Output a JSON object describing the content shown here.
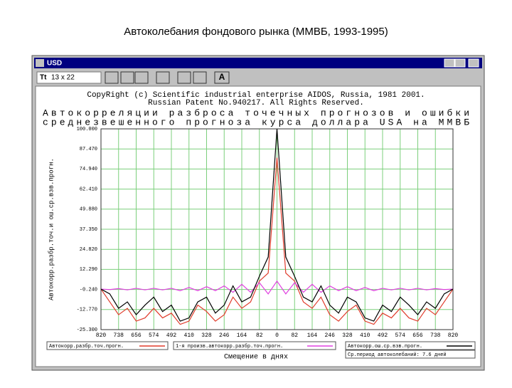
{
  "slide_title": "Автоколебания фондового рынка (ММВБ, 1993-1995)",
  "window": {
    "title": "USD",
    "toolbar": {
      "font_icon": "Tt",
      "size": "13 x 22",
      "font_button": "A"
    }
  },
  "chart_data": {
    "type": "line",
    "header": [
      "CopyRight (c) Scientific industrial enterprise AIDOS, Russia, 1981 2001.",
      "Russian Patent No.940217. All Rights Reserved."
    ],
    "title": [
      "Автокорреляции разброса точечных прогнозов и ошибки",
      "среднезвешенного прогноза курса доллара USA на ММВБ"
    ],
    "x_label": "Смещение в днях",
    "y_label": "Автокорр.разбр.точ.и ош.ср.взв.прогн.",
    "annotation": "Ср.период автоколебаний: 7.6 дней",
    "x": [
      -820,
      -779,
      -738,
      -697,
      -656,
      -615,
      -574,
      -533,
      -492,
      -451,
      -410,
      -369,
      -328,
      -287,
      -246,
      -205,
      -164,
      -123,
      -82,
      -41,
      0,
      41,
      82,
      123,
      164,
      205,
      246,
      287,
      328,
      369,
      410,
      451,
      492,
      533,
      574,
      615,
      656,
      697,
      738,
      779,
      820
    ],
    "series": [
      {
        "name": "Автокорр.разбр.точ.прогн.",
        "color": "#e03c2c",
        "values": [
          0,
          -8,
          -16,
          -12,
          -20,
          -18,
          -12,
          -18,
          -15,
          -22,
          -20,
          -10,
          -14,
          -20,
          -16,
          -5,
          -12,
          -8,
          5,
          10,
          82,
          10,
          5,
          -8,
          -12,
          -5,
          -16,
          -20,
          -14,
          -10,
          -20,
          -22,
          -15,
          -18,
          -12,
          -18,
          -20,
          -12,
          -16,
          -8,
          0
        ]
      },
      {
        "name": "1-я произв.автокорр.разбр.точ.прогн.",
        "color": "#e040e0",
        "values": [
          0,
          -0.3,
          0.3,
          -0.5,
          0.5,
          -0.5,
          0.5,
          -0.5,
          0.5,
          -1,
          1,
          -1,
          1.5,
          -1,
          2,
          -2,
          3,
          -2,
          4,
          -3,
          5,
          -3,
          4,
          -2,
          3,
          -2,
          2,
          -1,
          1.5,
          -1,
          1,
          -1,
          0.5,
          -0.5,
          0.5,
          -0.5,
          0.5,
          -0.5,
          0.3,
          -0.3,
          0
        ]
      },
      {
        "name": "Автокорр.ош.ср.взв.прогн.",
        "color": "#000000",
        "values": [
          0,
          -3,
          -12,
          -8,
          -16,
          -10,
          -5,
          -14,
          -10,
          -20,
          -18,
          -8,
          -5,
          -15,
          -10,
          2,
          -8,
          -5,
          8,
          20,
          100,
          20,
          8,
          -5,
          -8,
          2,
          -10,
          -15,
          -5,
          -8,
          -18,
          -20,
          -10,
          -14,
          -5,
          -10,
          -16,
          -8,
          -12,
          -3,
          0
        ]
      }
    ],
    "xlim": [
      -820,
      820
    ],
    "xticks": [
      {
        "value": -820,
        "label": "820"
      },
      {
        "value": -738,
        "label": "738"
      },
      {
        "value": -656,
        "label": "656"
      },
      {
        "value": -574,
        "label": "574"
      },
      {
        "value": -492,
        "label": "492"
      },
      {
        "value": -410,
        "label": "410"
      },
      {
        "value": -328,
        "label": "328"
      },
      {
        "value": -246,
        "label": "246"
      },
      {
        "value": -164,
        "label": "164"
      },
      {
        "value": -82,
        "label": "82"
      },
      0,
      82,
      164,
      246,
      328,
      410,
      492,
      574,
      656,
      738,
      820
    ],
    "ylim": [
      -25.3,
      100
    ],
    "yticks": [
      {
        "value": -25.3,
        "label": "-25.300"
      },
      {
        "value": -12.77,
        "label": "-12.770"
      },
      {
        "value": -0.24,
        "label": "-0.240"
      },
      {
        "value": 12.29,
        "label": "12.290"
      },
      {
        "value": 24.82,
        "label": "24.820"
      },
      {
        "value": 37.35,
        "label": "37.350"
      },
      {
        "value": 49.88,
        "label": "49.880"
      },
      {
        "value": 62.41,
        "label": "62.410"
      },
      {
        "value": 74.94,
        "label": "74.940"
      },
      {
        "value": 87.47,
        "label": "87.470"
      },
      {
        "value": 100,
        "label": "100.000"
      }
    ],
    "grid": true,
    "grid_color": "#7ccf7c"
  }
}
